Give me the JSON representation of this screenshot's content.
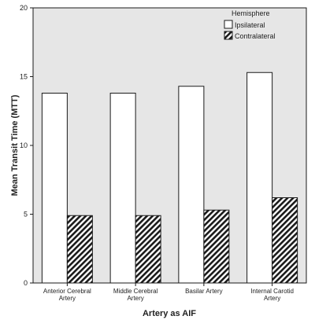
{
  "chart_data": {
    "type": "bar",
    "xlabel": "Artery as AIF",
    "ylabel": "Mean Transit Time (MTT)",
    "ylim": [
      0,
      20
    ],
    "yticks": [
      0,
      5,
      10,
      15,
      20
    ],
    "categories": [
      [
        "Anterior Cerebral",
        "Artery"
      ],
      [
        "Middle Cerebral",
        "Artery"
      ],
      [
        "Basilar Artery"
      ],
      [
        "Internal Carotid",
        "Artery"
      ]
    ],
    "legend_title": "Hemisphere",
    "legend_position": "top-right",
    "grid": false,
    "series": [
      {
        "name": "Ipsilateral",
        "values": [
          13.8,
          13.8,
          14.3,
          15.3
        ],
        "fill": "solid-white"
      },
      {
        "name": "Contralateral",
        "values": [
          4.9,
          4.9,
          5.3,
          6.2
        ],
        "fill": "diagonal-hatch"
      }
    ]
  },
  "colors": {
    "plot_background": "#e6e6e6",
    "bar_fill": "#ffffff",
    "hatch_dark": "#1a1a1a",
    "outline": "#1a1a1a"
  }
}
